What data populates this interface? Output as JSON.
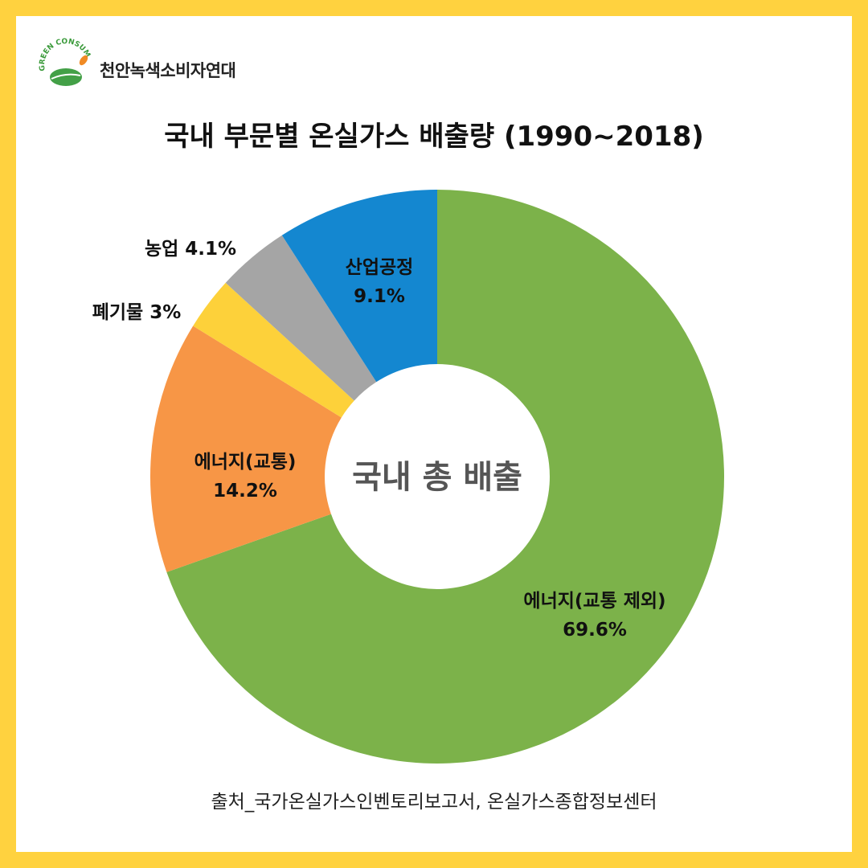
{
  "brand": {
    "name": "천안녹색소비자연대",
    "logo_text": "GREEN CONSUMER"
  },
  "source_note": "출처_국가온실가스인벤토리보고서, 온실가스종합정보센터",
  "chart_data": {
    "type": "pie",
    "title": "국내 부문별 온실가스 배출량 (1990~2018)",
    "center_label": "국내 총 배출",
    "start_angle_deg": 0,
    "direction": "clockwise",
    "categories": [
      "에너지(교통 제외)",
      "에너지(교통)",
      "폐기물",
      "농업",
      "산업공정"
    ],
    "values": [
      69.6,
      14.2,
      3,
      4.1,
      9.1
    ],
    "label_texts": [
      "69.6%",
      "14.2%",
      "3%",
      "4.1%",
      "9.1%"
    ],
    "colors": [
      "#7cb24a",
      "#f79646",
      "#fdd13a",
      "#a5a5a5",
      "#1487d0"
    ],
    "legend": "none"
  }
}
